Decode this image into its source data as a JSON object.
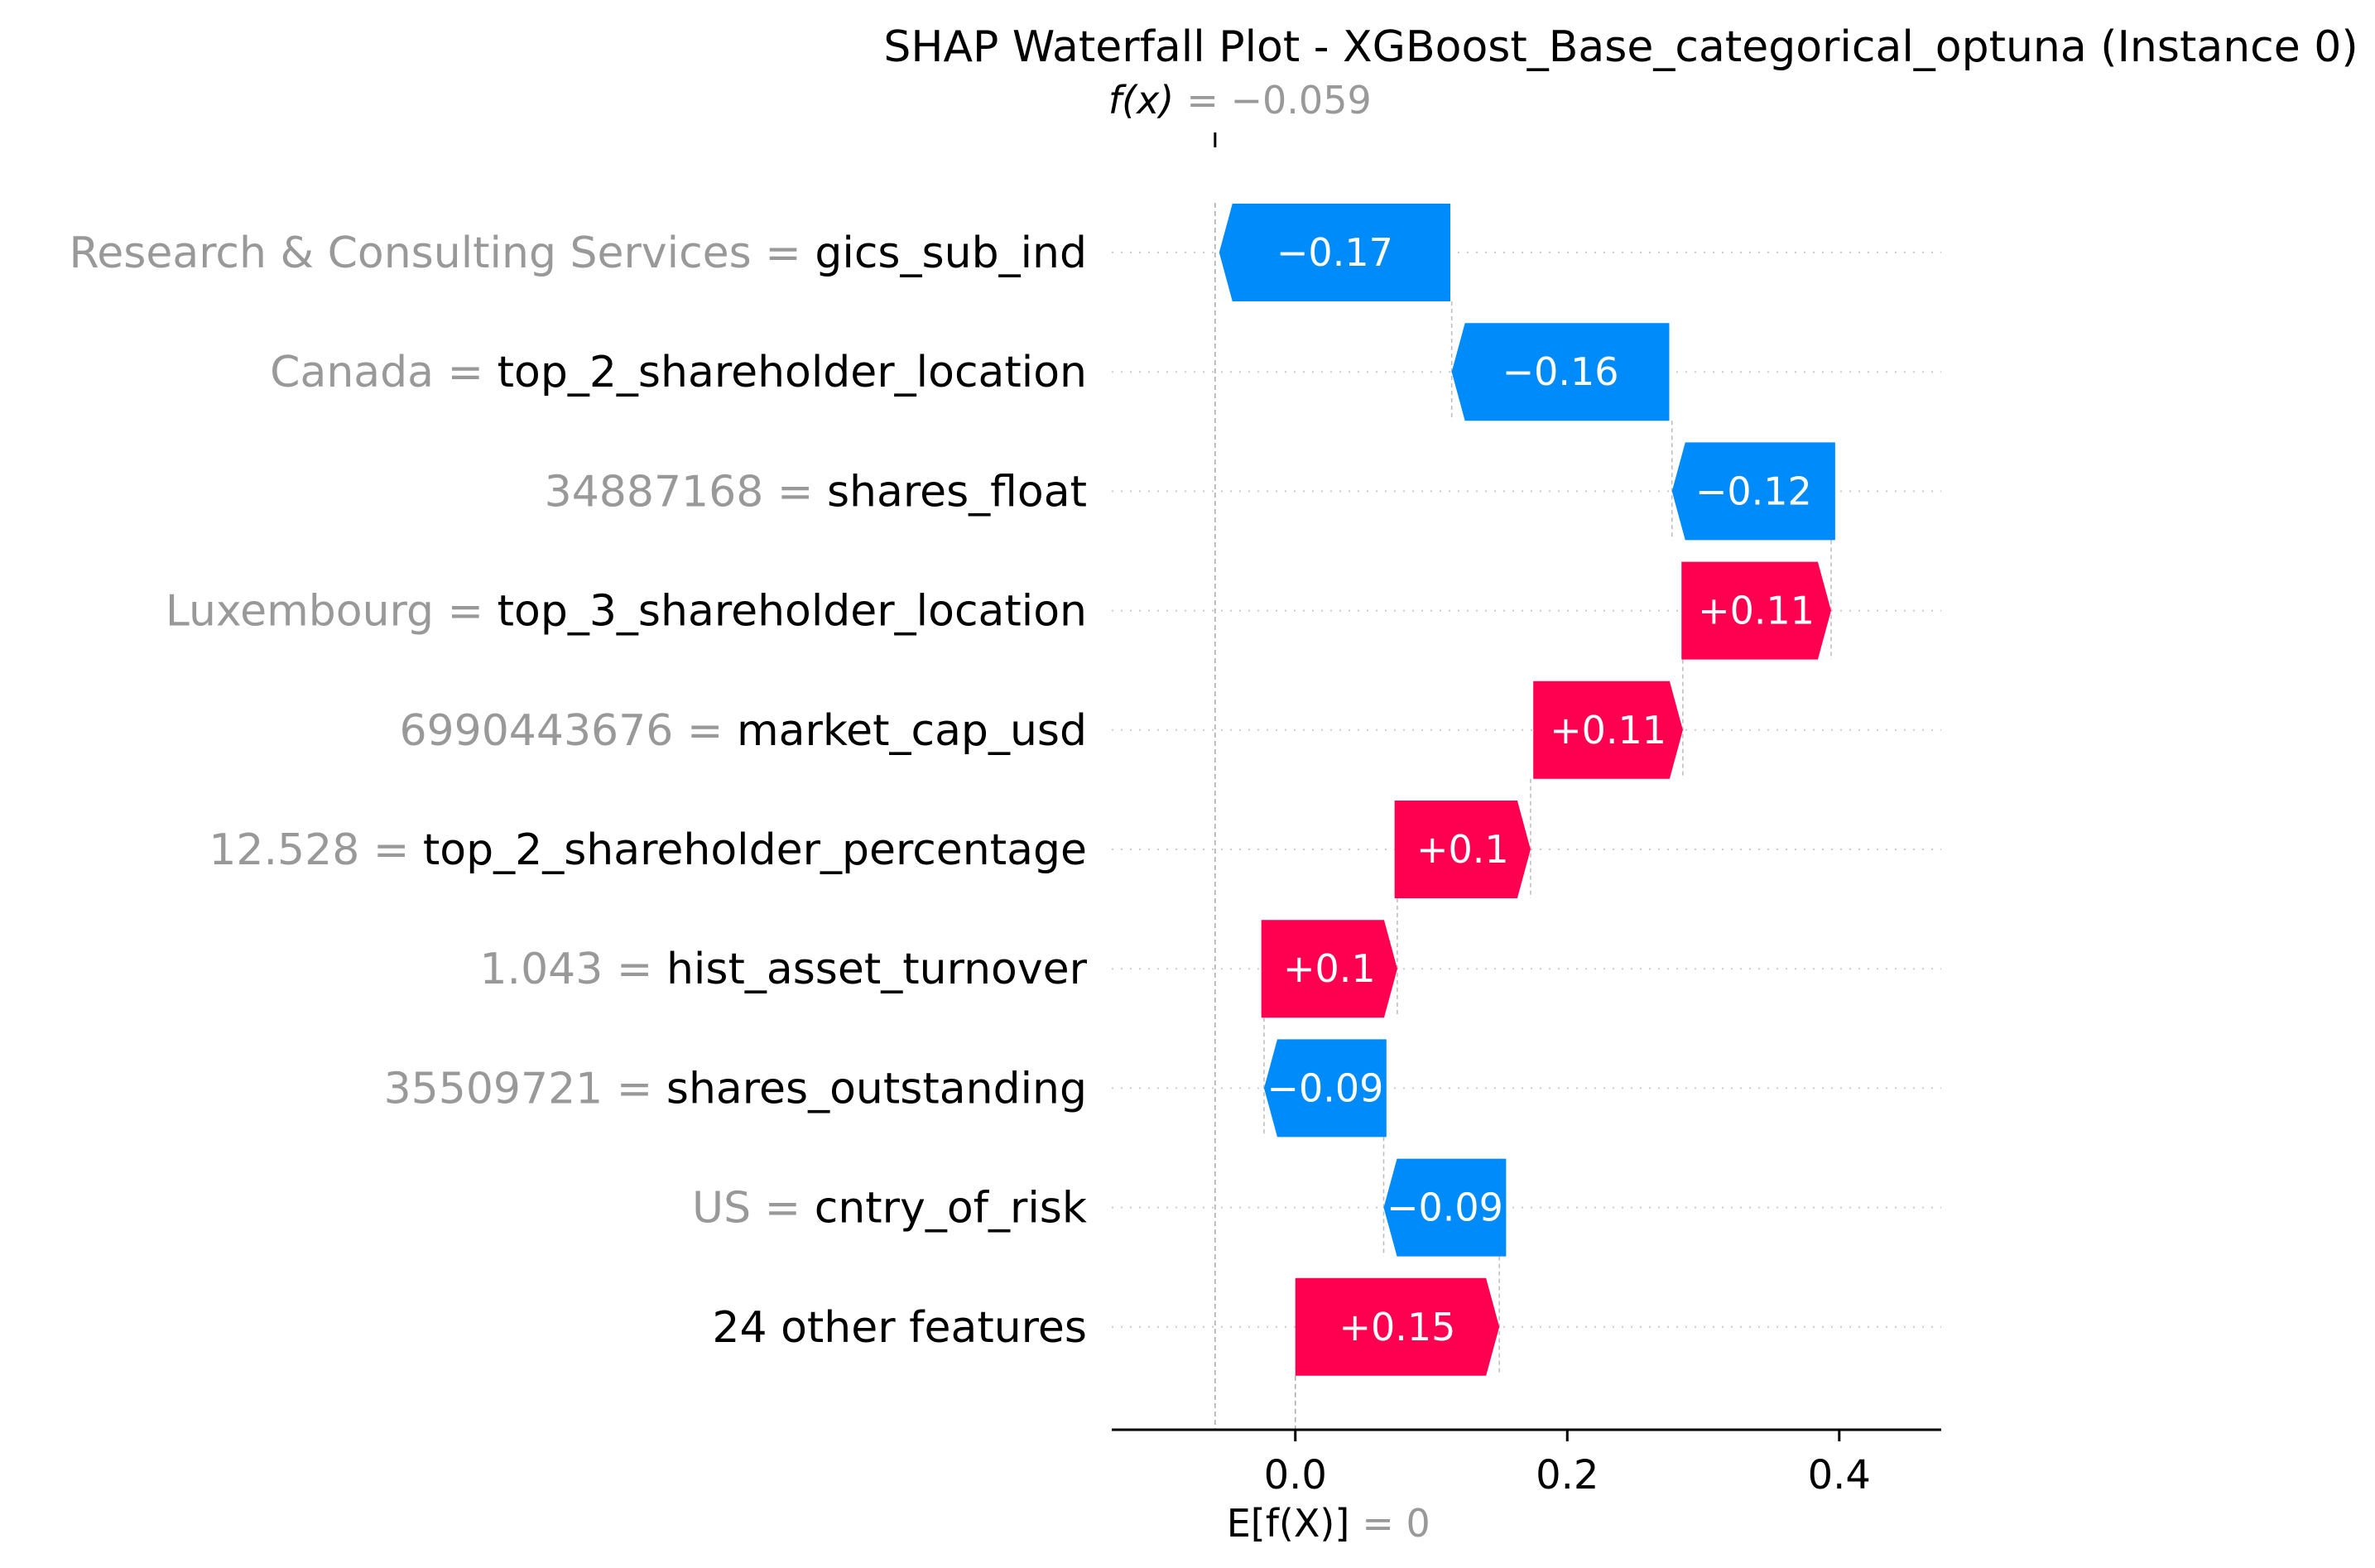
{
  "chart_data": {
    "type": "waterfall",
    "title": "SHAP Waterfall Plot - XGBoost_Base_categorical_optuna (Instance 0)",
    "fx": {
      "label": "f(x)",
      "value_text": "= −0.059",
      "value": -0.059
    },
    "base": {
      "label": "E[f(X)]",
      "value_text": "= 0",
      "value": 0
    },
    "xlim": [
      -0.135,
      0.475
    ],
    "xticks": [
      {
        "value": 0.0,
        "label": "0.0"
      },
      {
        "value": 0.2,
        "label": "0.2"
      },
      {
        "value": 0.4,
        "label": "0.4"
      }
    ],
    "colors": {
      "positive": "#ff0051",
      "negative": "#008bfb",
      "value_text": "#999999",
      "grid": "#cccccc"
    },
    "features": [
      {
        "value": "Research & Consulting Services",
        "name": "gics_sub_ind",
        "shap": -0.17,
        "label": "−0.17",
        "start": 0.114
      },
      {
        "value": "Canada",
        "name": "top_2_shareholder_location",
        "shap": -0.16,
        "label": "−0.16",
        "start": 0.275
      },
      {
        "value": "34887168",
        "name": "shares_float",
        "shap": -0.12,
        "label": "−0.12",
        "start": 0.397
      },
      {
        "value": "Luxembourg",
        "name": "top_3_shareholder_location",
        "shap": 0.11,
        "label": "+0.11",
        "start": 0.284
      },
      {
        "value": "6990443676",
        "name": "market_cap_usd",
        "shap": 0.11,
        "label": "+0.11",
        "start": 0.175
      },
      {
        "value": "12.528",
        "name": "top_2_shareholder_percentage",
        "shap": 0.1,
        "label": "+0.1",
        "start": 0.073
      },
      {
        "value": "1.043",
        "name": "hist_asset_turnover",
        "shap": 0.1,
        "label": "+0.1",
        "start": -0.025
      },
      {
        "value": "35509721",
        "name": "shares_outstanding",
        "shap": -0.09,
        "label": "−0.09",
        "start": 0.067
      },
      {
        "value": "US",
        "name": "cntry_of_risk",
        "shap": -0.09,
        "label": "−0.09",
        "start": 0.155
      },
      {
        "value": "",
        "name": "24 other features",
        "shap": 0.15,
        "label": "+0.15",
        "start": 0.0
      }
    ]
  }
}
